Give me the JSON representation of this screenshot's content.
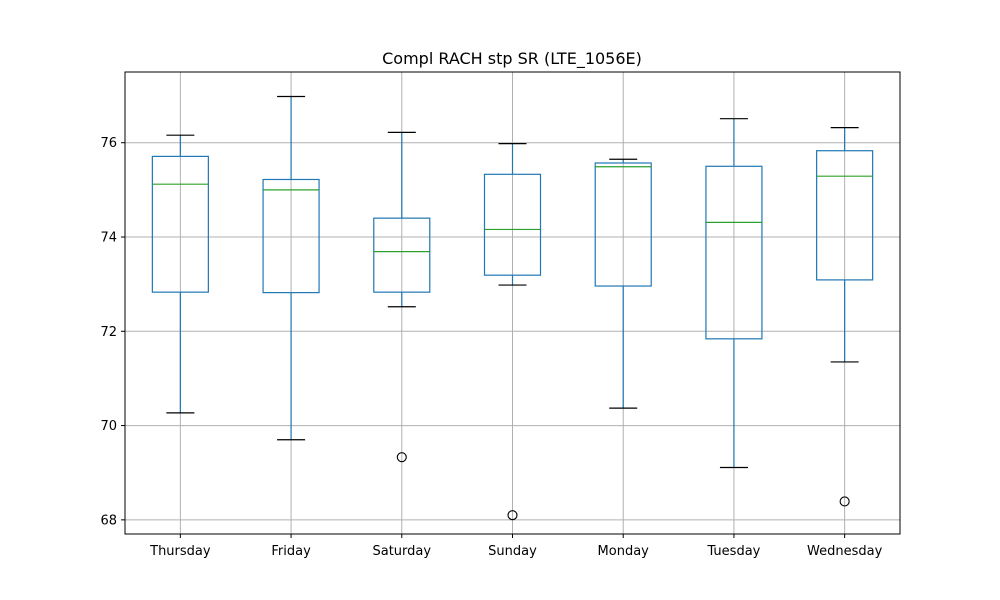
{
  "chart_data": {
    "type": "boxplot",
    "title": "Compl RACH stp SR (LTE_1056E)",
    "xlabel": "",
    "ylabel": "",
    "ylim": [
      67.7,
      77.5
    ],
    "yticks": [
      68,
      70,
      72,
      74,
      76
    ],
    "grid": true,
    "categories": [
      "Thursday",
      "Friday",
      "Saturday",
      "Sunday",
      "Monday",
      "Tuesday",
      "Wednesday"
    ],
    "boxes": [
      {
        "category": "Thursday",
        "whisker_low": 70.27,
        "q1": 72.83,
        "median": 75.12,
        "q3": 75.71,
        "whisker_high": 76.16,
        "outliers": []
      },
      {
        "category": "Friday",
        "whisker_low": 69.7,
        "q1": 72.82,
        "median": 75.0,
        "q3": 75.22,
        "whisker_high": 76.98,
        "outliers": []
      },
      {
        "category": "Saturday",
        "whisker_low": 72.52,
        "q1": 72.83,
        "median": 73.69,
        "q3": 74.4,
        "whisker_high": 76.22,
        "outliers": [
          69.33
        ]
      },
      {
        "category": "Sunday",
        "whisker_low": 72.98,
        "q1": 73.19,
        "median": 74.16,
        "q3": 75.33,
        "whisker_high": 75.98,
        "outliers": [
          68.1
        ]
      },
      {
        "category": "Monday",
        "whisker_low": 70.37,
        "q1": 72.96,
        "median": 75.49,
        "q3": 75.57,
        "whisker_high": 75.65,
        "outliers": []
      },
      {
        "category": "Tuesday",
        "whisker_low": 69.11,
        "q1": 71.84,
        "median": 74.31,
        "q3": 75.5,
        "whisker_high": 76.51,
        "outliers": []
      },
      {
        "category": "Wednesday",
        "whisker_low": 71.35,
        "q1": 73.09,
        "median": 75.29,
        "q3": 75.83,
        "whisker_high": 76.32,
        "outliers": [
          68.39
        ]
      }
    ],
    "colors": {
      "box": "#1f77b4",
      "median": "#2ca02c",
      "whisker_cap": "#000000",
      "grid": "#b0b0b0",
      "outlier": "#000000"
    }
  }
}
